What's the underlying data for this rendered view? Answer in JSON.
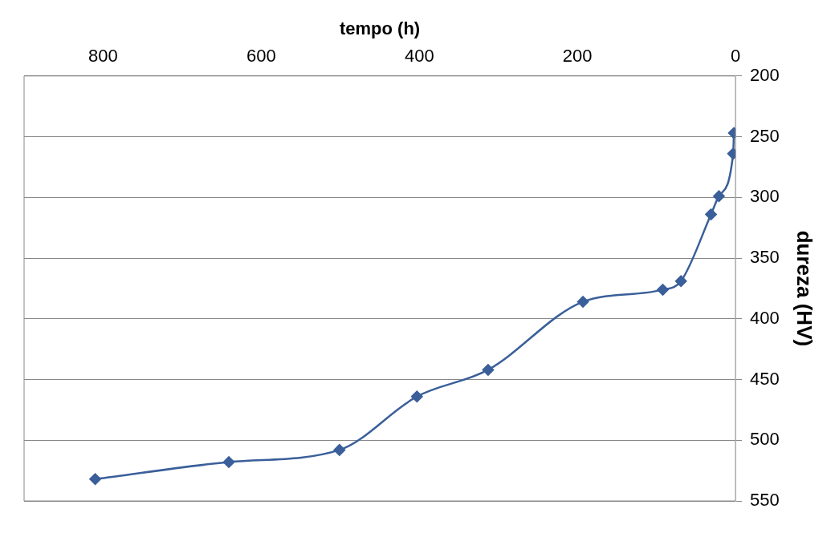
{
  "chart_data": {
    "type": "line",
    "xlabel": "tempo (h)",
    "ylabel": "dureza (HV)",
    "x": [
      2,
      3,
      21,
      31,
      69,
      92,
      193,
      313,
      403,
      501,
      641,
      810
    ],
    "series": [
      {
        "color": "#3a5f9a",
        "values": [
          247,
          264,
          299,
          314,
          369,
          376,
          386,
          442,
          464,
          508,
          518,
          532
        ]
      }
    ],
    "xlim": [
      900,
      0
    ],
    "ylim": [
      550,
      200
    ],
    "xticks": [
      0,
      200,
      400,
      600,
      800
    ],
    "yticks": [
      200,
      250,
      300,
      350,
      400,
      450,
      500,
      550
    ],
    "grid": "y",
    "legend": false,
    "marker": "diamond",
    "line_style": "solid"
  }
}
